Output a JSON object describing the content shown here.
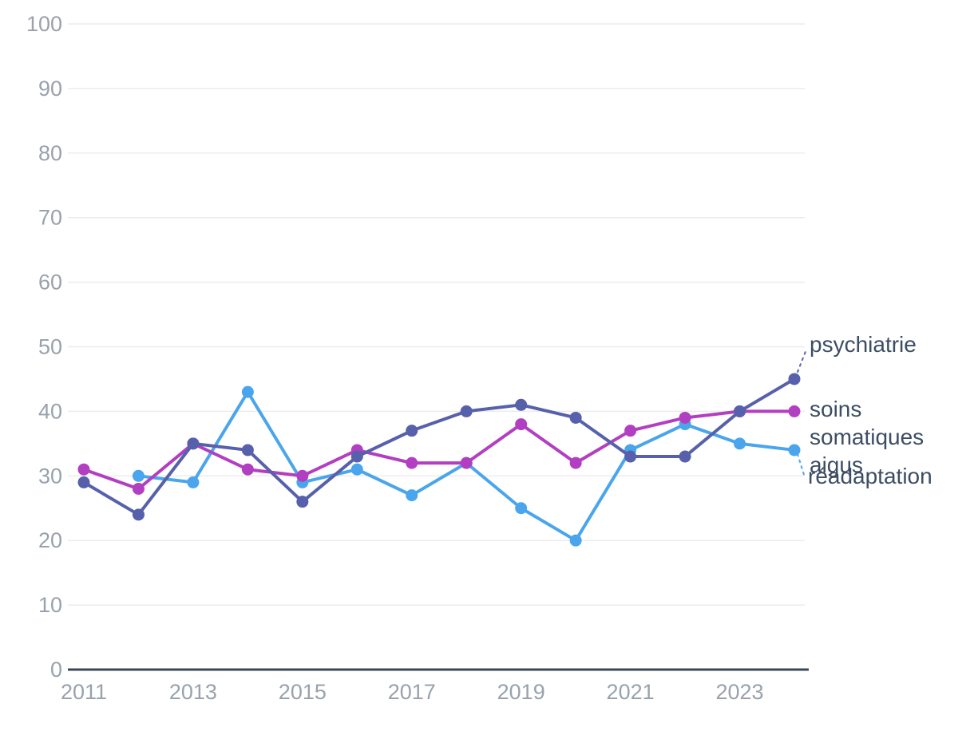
{
  "chart_data": {
    "type": "line",
    "title": "",
    "x": [
      2011,
      2012,
      2013,
      2014,
      2015,
      2016,
      2017,
      2018,
      2019,
      2020,
      2021,
      2022,
      2023,
      2024
    ],
    "x_tick_labels": [
      "2011",
      "2013",
      "2015",
      "2017",
      "2019",
      "2021",
      "2023"
    ],
    "x_ticks_shown": [
      2011,
      2013,
      2015,
      2017,
      2019,
      2021,
      2023
    ],
    "y_ticks": [
      0,
      10,
      20,
      30,
      40,
      50,
      60,
      70,
      80,
      90,
      100
    ],
    "y_tick_labels": [
      "0",
      "10",
      "20",
      "30",
      "40",
      "50",
      "60",
      "70",
      "80",
      "90",
      "100"
    ],
    "ylim": [
      0,
      100
    ],
    "xlabel": "",
    "ylabel": "",
    "grid": "horizontal",
    "legend_position": "right-direct-labels",
    "series": [
      {
        "name": "psychiatrie",
        "label_lines": [
          "psychiatrie"
        ],
        "color": "#5660ab",
        "values": [
          29,
          24,
          35,
          34,
          26,
          33,
          37,
          40,
          41,
          39,
          33,
          33,
          40,
          45
        ]
      },
      {
        "name": "soins somatiques aigus",
        "label_lines": [
          "soins",
          "somatiques",
          "aigus"
        ],
        "color": "#b23fc1",
        "values": [
          31,
          28,
          35,
          31,
          30,
          34,
          32,
          32,
          38,
          32,
          37,
          39,
          40,
          40
        ]
      },
      {
        "name": "réadaptation",
        "label_lines": [
          "réadaptation"
        ],
        "color": "#4aa5ec",
        "values": [
          null,
          30,
          29,
          43,
          29,
          31,
          27,
          32,
          25,
          20,
          34,
          38,
          35,
          34
        ]
      }
    ],
    "colors": {
      "grid_line": "#ececec",
      "axis_line": "#3b4754",
      "tick_label": "#99a2ac",
      "series_label": "#3d4d63",
      "background": "#ffffff"
    }
  }
}
